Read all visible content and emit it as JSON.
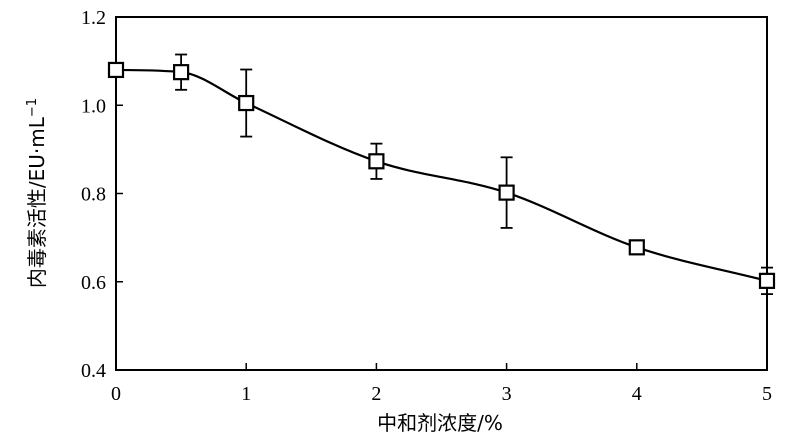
{
  "chart_data": {
    "type": "line",
    "xlabel": "中和剂浓度/%",
    "ylabel": "内毒素活性/EU·mL",
    "ylabel_sup": "−1",
    "xlim": [
      0,
      5
    ],
    "ylim": [
      0.4,
      1.2
    ],
    "xticks": [
      0,
      1,
      2,
      3,
      4,
      5
    ],
    "xtick_labels": [
      "0",
      "1",
      "2",
      "3",
      "4",
      "5"
    ],
    "yticks": [
      0.4,
      0.6,
      0.8,
      1.0,
      1.2
    ],
    "ytick_labels": [
      "0.4",
      "0.6",
      "0.8",
      "1.0",
      "1.2"
    ],
    "grid": false,
    "marker": "open-square",
    "series": [
      {
        "x": [
          0,
          0.5,
          1,
          2,
          3,
          4,
          5
        ],
        "y": [
          1.08,
          1.075,
          1.005,
          0.873,
          0.802,
          0.678,
          0.602
        ],
        "err": [
          0,
          0.04,
          0.076,
          0.04,
          0.08,
          0.008,
          0.03
        ]
      }
    ]
  }
}
